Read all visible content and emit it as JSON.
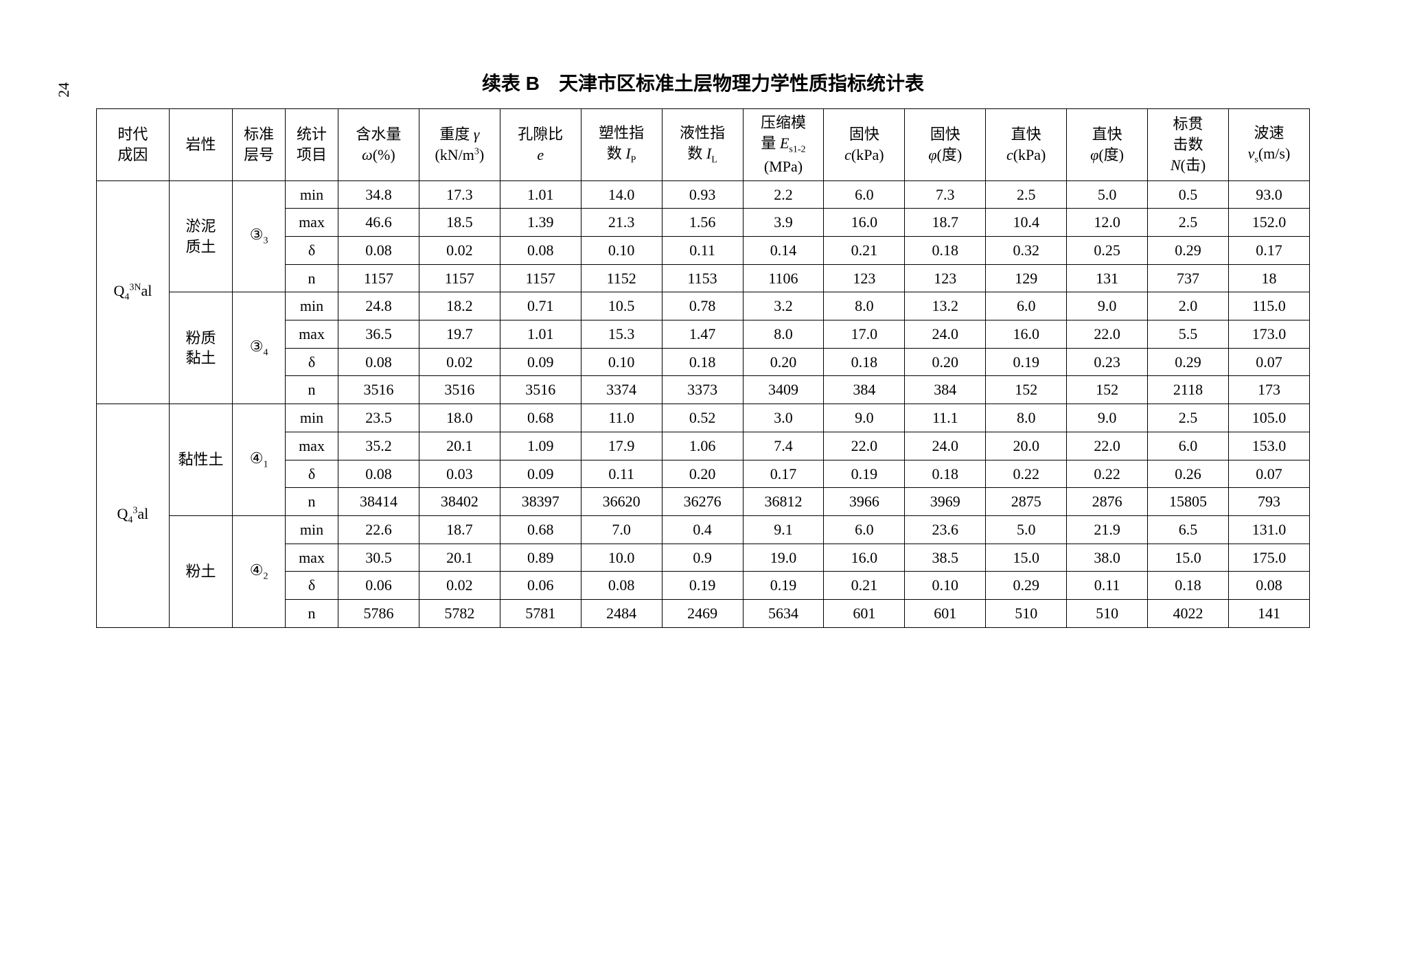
{
  "page_number": "24",
  "title": "续表 B　天津市区标准土层物理力学性质指标统计表",
  "headers": {
    "era": "时代\n成因",
    "rock_type": "岩性",
    "layer_num": "标准\n层号",
    "stat_item": "统计\n项目",
    "cols": [
      {
        "main": "含水量",
        "sub": "ω(%)"
      },
      {
        "main": "重度 γ",
        "sub": "(kN/m³)"
      },
      {
        "main": "孔隙比",
        "sub": "e"
      },
      {
        "main": "塑性指",
        "sub": "数 Iₚ"
      },
      {
        "main": "液性指",
        "sub": "数 Iₗ"
      },
      {
        "main": "压缩模",
        "sub": "量 Eₛ₁₋₂\n(MPa)"
      },
      {
        "main": "固快",
        "sub": "c(kPa)"
      },
      {
        "main": "固快",
        "sub": "φ(度)"
      },
      {
        "main": "直快",
        "sub": "c(kPa)"
      },
      {
        "main": "直快",
        "sub": "φ(度)"
      },
      {
        "main": "标贯",
        "sub": "击数\nN(击)"
      },
      {
        "main": "波速",
        "sub": "vₛ(m/s)"
      }
    ]
  },
  "stat_labels": [
    "min",
    "max",
    "δ",
    "n"
  ],
  "groups": [
    {
      "era": "Q₄³ᴺal",
      "subgroups": [
        {
          "rock": "淤泥\n质土",
          "layer": "③₃",
          "rows": [
            [
              "34.8",
              "17.3",
              "1.01",
              "14.0",
              "0.93",
              "2.2",
              "6.0",
              "7.3",
              "2.5",
              "5.0",
              "0.5",
              "93.0"
            ],
            [
              "46.6",
              "18.5",
              "1.39",
              "21.3",
              "1.56",
              "3.9",
              "16.0",
              "18.7",
              "10.4",
              "12.0",
              "2.5",
              "152.0"
            ],
            [
              "0.08",
              "0.02",
              "0.08",
              "0.10",
              "0.11",
              "0.14",
              "0.21",
              "0.18",
              "0.32",
              "0.25",
              "0.29",
              "0.17"
            ],
            [
              "1157",
              "1157",
              "1157",
              "1152",
              "1153",
              "1106",
              "123",
              "123",
              "129",
              "131",
              "737",
              "18"
            ]
          ]
        },
        {
          "rock": "粉质\n黏土",
          "layer": "③₄",
          "rows": [
            [
              "24.8",
              "18.2",
              "0.71",
              "10.5",
              "0.78",
              "3.2",
              "8.0",
              "13.2",
              "6.0",
              "9.0",
              "2.0",
              "115.0"
            ],
            [
              "36.5",
              "19.7",
              "1.01",
              "15.3",
              "1.47",
              "8.0",
              "17.0",
              "24.0",
              "16.0",
              "22.0",
              "5.5",
              "173.0"
            ],
            [
              "0.08",
              "0.02",
              "0.09",
              "0.10",
              "0.18",
              "0.20",
              "0.18",
              "0.20",
              "0.19",
              "0.23",
              "0.29",
              "0.07"
            ],
            [
              "3516",
              "3516",
              "3516",
              "3374",
              "3373",
              "3409",
              "384",
              "384",
              "152",
              "152",
              "2118",
              "173"
            ]
          ]
        }
      ]
    },
    {
      "era": "Q₄³al",
      "subgroups": [
        {
          "rock": "黏性土",
          "layer": "④₁",
          "rows": [
            [
              "23.5",
              "18.0",
              "0.68",
              "11.0",
              "0.52",
              "3.0",
              "9.0",
              "11.1",
              "8.0",
              "9.0",
              "2.5",
              "105.0"
            ],
            [
              "35.2",
              "20.1",
              "1.09",
              "17.9",
              "1.06",
              "7.4",
              "22.0",
              "24.0",
              "20.0",
              "22.0",
              "6.0",
              "153.0"
            ],
            [
              "0.08",
              "0.03",
              "0.09",
              "0.11",
              "0.20",
              "0.17",
              "0.19",
              "0.18",
              "0.22",
              "0.22",
              "0.26",
              "0.07"
            ],
            [
              "38414",
              "38402",
              "38397",
              "36620",
              "36276",
              "36812",
              "3966",
              "3969",
              "2875",
              "2876",
              "15805",
              "793"
            ]
          ]
        },
        {
          "rock": "粉土",
          "layer": "④₂",
          "rows": [
            [
              "22.6",
              "18.7",
              "0.68",
              "7.0",
              "0.4",
              "9.1",
              "6.0",
              "23.6",
              "5.0",
              "21.9",
              "6.5",
              "131.0"
            ],
            [
              "30.5",
              "20.1",
              "0.89",
              "10.0",
              "0.9",
              "19.0",
              "16.0",
              "38.5",
              "15.0",
              "38.0",
              "15.0",
              "175.0"
            ],
            [
              "0.06",
              "0.02",
              "0.06",
              "0.08",
              "0.19",
              "0.19",
              "0.21",
              "0.10",
              "0.29",
              "0.11",
              "0.18",
              "0.08"
            ],
            [
              "5786",
              "5782",
              "5781",
              "2484",
              "2469",
              "5634",
              "601",
              "601",
              "510",
              "510",
              "4022",
              "141"
            ]
          ]
        }
      ]
    }
  ],
  "style": {
    "background": "#ffffff",
    "text_color": "#000000",
    "border_color": "#000000",
    "title_fontsize": 28,
    "cell_fontsize": 22,
    "font_family": "SimSun"
  }
}
